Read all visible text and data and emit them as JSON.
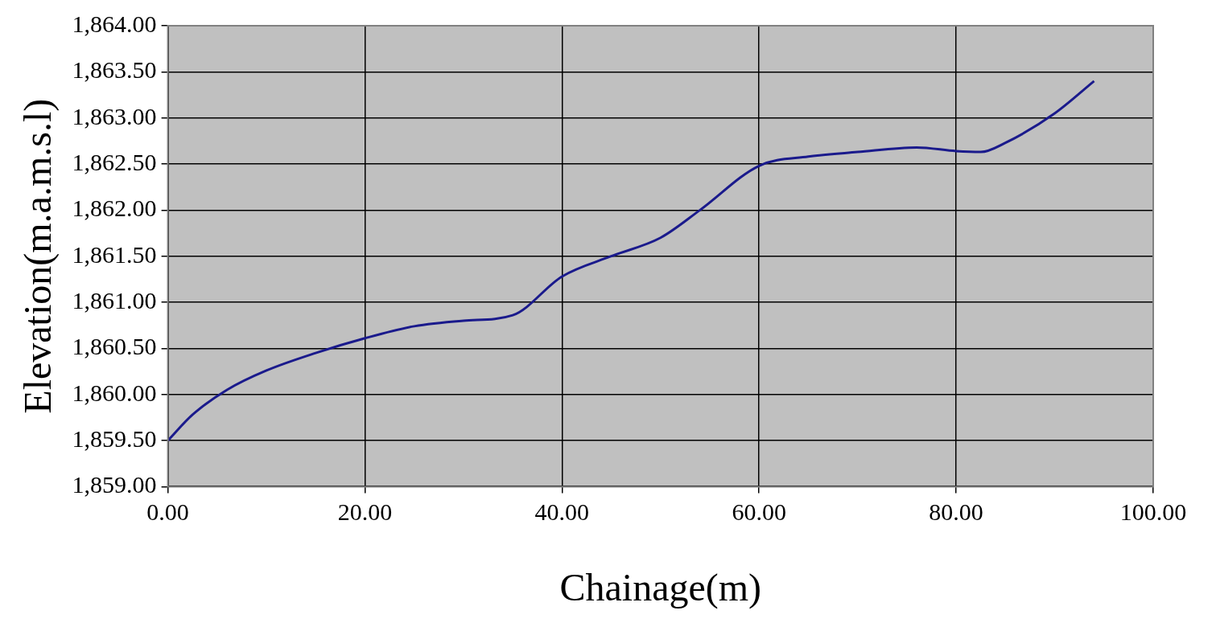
{
  "chart_data": {
    "type": "line",
    "xlabel": "Chainage(m)",
    "ylabel": "Elevation(m.a.m.s.l)",
    "xlim": [
      0,
      100
    ],
    "ylim": [
      1859,
      1864
    ],
    "xticks": [
      {
        "value": 0,
        "label": "0.00"
      },
      {
        "value": 20,
        "label": "20.00"
      },
      {
        "value": 40,
        "label": "40.00"
      },
      {
        "value": 60,
        "label": "60.00"
      },
      {
        "value": 80,
        "label": "80.00"
      },
      {
        "value": 100,
        "label": "100.00"
      }
    ],
    "yticks": [
      {
        "value": 1859,
        "label": "1,859.00"
      },
      {
        "value": 1859.5,
        "label": "1,859.50"
      },
      {
        "value": 1860,
        "label": "1,860.00"
      },
      {
        "value": 1860.5,
        "label": "1,860.50"
      },
      {
        "value": 1861,
        "label": "1,861.00"
      },
      {
        "value": 1861.5,
        "label": "1,861.50"
      },
      {
        "value": 1862,
        "label": "1,862.00"
      },
      {
        "value": 1862.5,
        "label": "1,862.50"
      },
      {
        "value": 1863,
        "label": "1,863.00"
      },
      {
        "value": 1863.5,
        "label": "1,863.50"
      },
      {
        "value": 1864,
        "label": "1,864.00"
      }
    ],
    "grid": true,
    "legend": false,
    "marker": "none",
    "line_style": "solid",
    "series": [
      {
        "color": "#1a1a8c",
        "x": [
          0,
          2.5,
          6,
          10,
          15,
          20,
          25,
          30,
          35,
          40,
          45,
          50,
          54,
          60,
          65,
          70,
          76,
          80,
          82.5,
          85,
          90,
          94
        ],
        "values": [
          1859.5,
          1859.78,
          1860.05,
          1860.26,
          1860.45,
          1860.61,
          1860.74,
          1860.8,
          1860.86,
          1861.28,
          1861.5,
          1861.7,
          1862.0,
          1862.48,
          1862.58,
          1862.63,
          1862.68,
          1862.64,
          1862.63,
          1862.73,
          1863.05,
          1863.4
        ]
      }
    ]
  }
}
